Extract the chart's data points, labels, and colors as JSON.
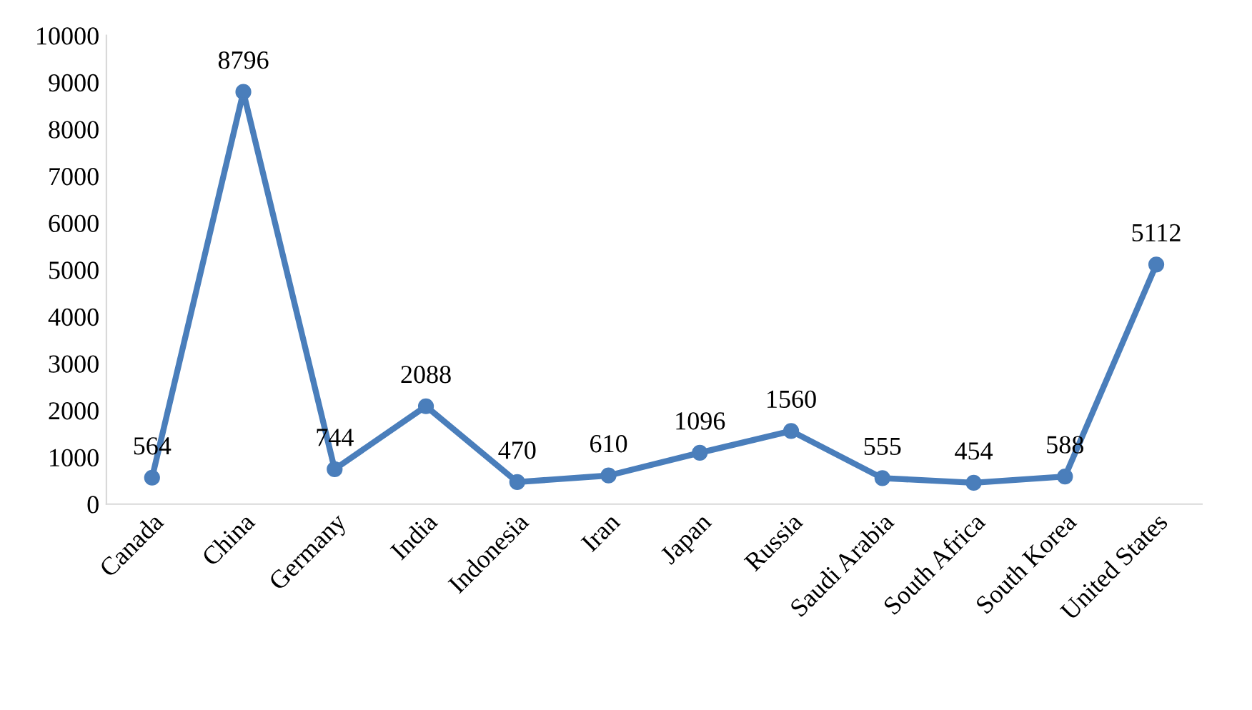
{
  "chart_data": {
    "type": "line",
    "categories": [
      "Canada",
      "China",
      "Germany",
      "India",
      "Indonesia",
      "Iran",
      "Japan",
      "Russia",
      "Saudi Arabia",
      "South Africa",
      "South Korea",
      "United States"
    ],
    "series": [
      {
        "color": "#4a7ebb",
        "values": [
          564,
          8796,
          744,
          2088,
          470,
          610,
          1096,
          1560,
          555,
          454,
          588,
          5112
        ]
      }
    ],
    "ylim": [
      0,
      10000
    ],
    "yticks": [
      0,
      1000,
      2000,
      3000,
      4000,
      5000,
      6000,
      7000,
      8000,
      9000,
      10000
    ],
    "grid": false,
    "legend": false,
    "marker": "circle",
    "line_style": "solid",
    "data_labels": true
  }
}
